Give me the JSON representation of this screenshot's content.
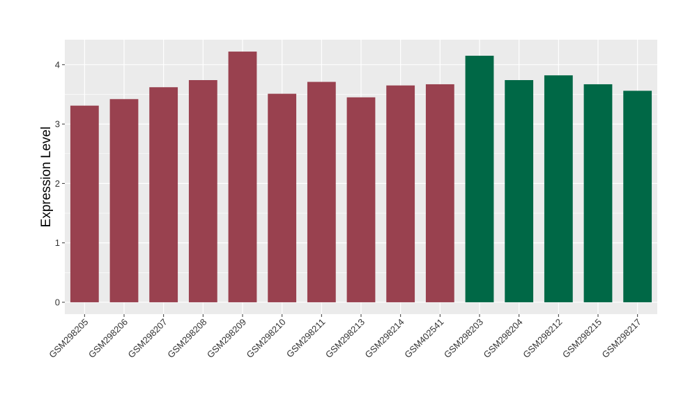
{
  "chart_data": {
    "type": "bar",
    "title": "",
    "xlabel": "",
    "ylabel": "Expression Level",
    "ylim": [
      -0.2,
      4.42
    ],
    "yticks": [
      0,
      1,
      2,
      3,
      4
    ],
    "grid": true,
    "legend": "none",
    "categories": [
      "GSM298205",
      "GSM298206",
      "GSM298207",
      "GSM298208",
      "GSM298209",
      "GSM298210",
      "GSM298211",
      "GSM298213",
      "GSM298214",
      "GSM402541",
      "GSM298203",
      "GSM298204",
      "GSM298212",
      "GSM298215",
      "GSM298217"
    ],
    "values": [
      3.31,
      3.42,
      3.62,
      3.74,
      4.22,
      3.51,
      3.71,
      3.45,
      3.65,
      3.67,
      4.15,
      3.74,
      3.82,
      3.67,
      3.56
    ],
    "bar_colors": [
      "#99414f",
      "#99414f",
      "#99414f",
      "#99414f",
      "#99414f",
      "#99414f",
      "#99414f",
      "#99414f",
      "#99414f",
      "#99414f",
      "#006846",
      "#006846",
      "#006846",
      "#006846",
      "#006846"
    ],
    "colors": {
      "panel_background": "#ebebeb",
      "grid": "#ffffff",
      "group1": "#99414f",
      "group2": "#006846"
    }
  }
}
